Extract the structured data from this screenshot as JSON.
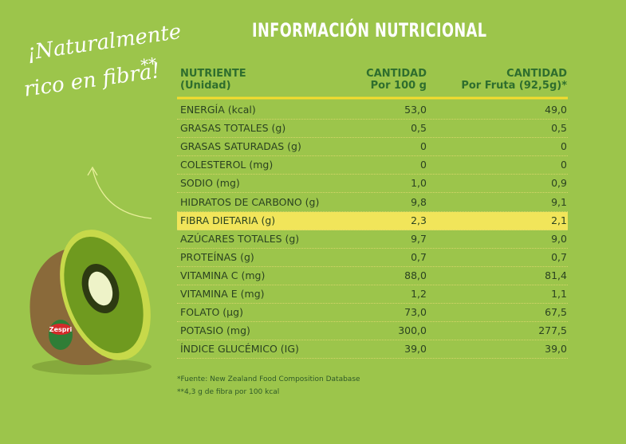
{
  "title": "INFORMACIÓN NUTRICIONAL",
  "slogan": {
    "line1": "¡Naturalmente",
    "line2": "rico en fibra!",
    "mark": "**"
  },
  "kiwi_label": "Zespri",
  "table": {
    "header": [
      [
        "NUTRIENTE",
        "(Unidad)"
      ],
      [
        "CANTIDAD",
        "Por 100 g"
      ],
      [
        "CANTIDAD",
        "Por Fruta (92,5g)*"
      ]
    ],
    "highlight_row": 6,
    "rows": [
      [
        "ENERGÍA (kcal)",
        "53,0",
        "49,0"
      ],
      [
        "GRASAS TOTALES (g)",
        "0,5",
        "0,5"
      ],
      [
        "GRASAS SATURADAS (g)",
        "0",
        "0"
      ],
      [
        "COLESTEROL (mg)",
        "0",
        "0"
      ],
      [
        "SODIO (mg)",
        "1,0",
        "0,9"
      ],
      [
        "HIDRATOS DE CARBONO (g)",
        "9,8",
        "9,1"
      ],
      [
        "FIBRA DIETARIA (g)",
        "2,3",
        "2,1"
      ],
      [
        "AZÚCARES TOTALES (g)",
        "9,7",
        "9,0"
      ],
      [
        "PROTEÍNAS (g)",
        "0,7",
        "0,7"
      ],
      [
        "VITAMINA C (mg)",
        "88,0",
        "81,4"
      ],
      [
        "VITAMINA E (mg)",
        "1,2",
        "1,1"
      ],
      [
        "FOLATO (µg)",
        "73,0",
        "67,5"
      ],
      [
        "POTASIO (mg)",
        "300,0",
        "277,5"
      ],
      [
        "ÍNDICE GLUCÉMICO (IG)",
        "39,0",
        "39,0"
      ]
    ]
  },
  "footnotes": [
    "*Fuente: New Zealand Food Composition Database",
    "**4,3 g de fibra por 100 kcal"
  ]
}
